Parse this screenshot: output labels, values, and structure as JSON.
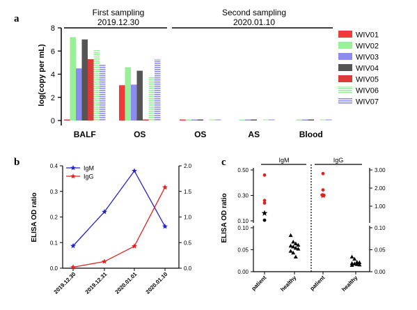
{
  "figure": {
    "panel_labels": [
      "a",
      "b",
      "c"
    ]
  },
  "chart_data": [
    {
      "id": "a",
      "type": "bar",
      "ylabel": "log(copy per mL)",
      "ylim": [
        0,
        8
      ],
      "yticks": [
        0,
        2,
        4,
        6,
        8
      ],
      "sampling_groups": [
        {
          "title": "First sampling",
          "date": "2019.12.30"
        },
        {
          "title": "Second sampling",
          "date": "2020.01.10"
        }
      ],
      "categories": [
        "BALF",
        "OS",
        "OS",
        "AS",
        "Blood"
      ],
      "series": [
        {
          "name": "WIV01",
          "color": "#ee3b3b",
          "pattern": "solid",
          "values": [
            0.05,
            3.05,
            0.05,
            0,
            0
          ]
        },
        {
          "name": "WIV02",
          "color": "#98f098",
          "pattern": "solid",
          "values": [
            7.2,
            4.6,
            0.05,
            0.05,
            0.05
          ]
        },
        {
          "name": "WIV03",
          "color": "#8c8cf0",
          "pattern": "solid",
          "values": [
            4.5,
            3.1,
            0.05,
            0.05,
            0.05
          ]
        },
        {
          "name": "WIV04",
          "color": "#555555",
          "pattern": "solid",
          "values": [
            7.0,
            4.3,
            0.05,
            0.05,
            0.05
          ]
        },
        {
          "name": "WIV05",
          "color": "#dd3a3a",
          "pattern": "solid",
          "values": [
            5.3,
            0.05,
            0,
            0,
            0
          ]
        },
        {
          "name": "WIV06",
          "color": "#98f098",
          "pattern": "hlines",
          "values": [
            6.1,
            3.8,
            0.05,
            0.05,
            0.05
          ]
        },
        {
          "name": "WIV07",
          "color": "#8c8cf0",
          "pattern": "hlines",
          "values": [
            4.85,
            5.3,
            0.05,
            0.05,
            0.05
          ]
        }
      ]
    },
    {
      "id": "b",
      "type": "line",
      "ylabel": "ELISA OD ratio",
      "categories": [
        "2019.12.30",
        "2019.12.31",
        "2020.01.01",
        "2020.01.10"
      ],
      "y_left": {
        "ylim": [
          0,
          0.4
        ],
        "ticks": [
          "0.0",
          "0.1",
          "0.2",
          "0.3",
          "0.4"
        ]
      },
      "y_right": {
        "ylim": [
          0,
          2.0
        ],
        "ticks": [
          "0.0",
          "0.5",
          "1.0",
          "1.5",
          "2.0"
        ]
      },
      "legend_position": "top-left",
      "series": [
        {
          "name": "IgM",
          "color": "#2222cc",
          "axis": "left",
          "values": [
            0.087,
            0.22,
            0.38,
            0.163
          ]
        },
        {
          "name": "IgG",
          "color": "#dd2222",
          "axis": "right",
          "values": [
            0.02,
            0.13,
            0.43,
            1.58
          ]
        }
      ]
    },
    {
      "id": "c",
      "type": "scatter",
      "ylabel": "ELISA OD ratio",
      "left_axis_ticks": [
        "0.50",
        "0.30",
        "0.10",
        "0.10",
        "0.05",
        "0.00"
      ],
      "right_axis_ticks": [
        "3.00",
        "2.00",
        "1.00",
        "0.10",
        "0.05",
        "0.00"
      ],
      "panels": [
        {
          "name": "IgM",
          "groups": [
            {
              "name": "patient",
              "points": [
                {
                  "y": 0.46,
                  "marker": "circle",
                  "color": "#dd2222"
                },
                {
                  "y": 0.26,
                  "marker": "circle",
                  "color": "#dd2222"
                },
                {
                  "y": 0.24,
                  "marker": "circle",
                  "color": "#dd2222"
                },
                {
                  "y": 0.16,
                  "marker": "star",
                  "color": "#000000"
                },
                {
                  "y": 0.105,
                  "marker": "circle",
                  "color": "#000000"
                }
              ]
            },
            {
              "name": "healthy",
              "points": [
                {
                  "y": 0.083,
                  "marker": "triangle",
                  "color": "#000000"
                },
                {
                  "y": 0.068,
                  "marker": "triangle",
                  "color": "#000000"
                },
                {
                  "y": 0.064,
                  "marker": "triangle",
                  "color": "#000000"
                },
                {
                  "y": 0.061,
                  "marker": "triangle",
                  "color": "#000000"
                },
                {
                  "y": 0.059,
                  "marker": "triangle",
                  "color": "#000000"
                },
                {
                  "y": 0.057,
                  "marker": "triangle",
                  "color": "#000000"
                },
                {
                  "y": 0.054,
                  "marker": "triangle",
                  "color": "#000000"
                },
                {
                  "y": 0.052,
                  "marker": "triangle",
                  "color": "#000000"
                },
                {
                  "y": 0.047,
                  "marker": "triangle",
                  "color": "#000000"
                },
                {
                  "y": 0.043,
                  "marker": "triangle",
                  "color": "#000000"
                },
                {
                  "y": 0.034,
                  "marker": "triangle",
                  "color": "#000000"
                }
              ]
            }
          ]
        },
        {
          "name": "IgG",
          "groups": [
            {
              "name": "patient",
              "points": [
                {
                  "y": 2.8,
                  "marker": "circle",
                  "color": "#dd2222"
                },
                {
                  "y": 1.9,
                  "marker": "circle",
                  "color": "#dd2222"
                },
                {
                  "y": 1.62,
                  "marker": "circle",
                  "color": "#dd2222"
                },
                {
                  "y": 1.6,
                  "marker": "circle",
                  "color": "#dd2222"
                },
                {
                  "y": 1.58,
                  "marker": "star",
                  "color": "#dd2222"
                }
              ]
            },
            {
              "name": "healthy",
              "points": [
                {
                  "y": 0.034,
                  "marker": "triangle",
                  "color": "#000000"
                },
                {
                  "y": 0.029,
                  "marker": "triangle",
                  "color": "#000000"
                },
                {
                  "y": 0.022,
                  "marker": "triangle",
                  "color": "#000000"
                },
                {
                  "y": 0.021,
                  "marker": "triangle",
                  "color": "#000000"
                },
                {
                  "y": 0.019,
                  "marker": "triangle",
                  "color": "#000000"
                },
                {
                  "y": 0.018,
                  "marker": "triangle",
                  "color": "#000000"
                },
                {
                  "y": 0.017,
                  "marker": "triangle",
                  "color": "#000000"
                },
                {
                  "y": 0.016,
                  "marker": "triangle",
                  "color": "#000000"
                },
                {
                  "y": 0.015,
                  "marker": "triangle",
                  "color": "#000000"
                }
              ]
            }
          ]
        }
      ]
    }
  ]
}
